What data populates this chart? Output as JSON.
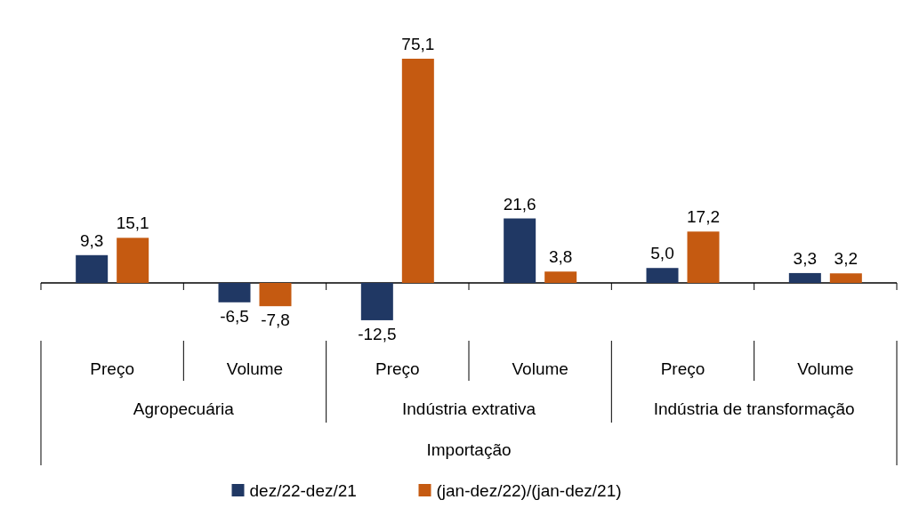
{
  "chart_data": {
    "type": "bar",
    "categories": [
      "Preço",
      "Volume",
      "Preço",
      "Volume",
      "Preço",
      "Volume"
    ],
    "series": [
      {
        "name": "dez/22-dez/21",
        "color": "#203864",
        "values": [
          9.3,
          -6.5,
          -12.5,
          21.6,
          5.0,
          3.3
        ],
        "value_labels": [
          "9,3",
          "-6,5",
          "-12,5",
          "21,6",
          "5,0",
          "3,3"
        ]
      },
      {
        "name": "(jan-dez/22)/(jan-dez/21)",
        "color": "#c55a11",
        "values": [
          15.1,
          -7.8,
          75.1,
          3.8,
          17.2,
          3.2
        ],
        "value_labels": [
          "15,1",
          "-7,8",
          "75,1",
          "3,8",
          "17,2",
          "3,2"
        ]
      }
    ],
    "annotations": [
      "Agropecuária",
      "Indústria extrativa",
      "Indústria de transformação",
      "Importação"
    ],
    "legend": "bottom"
  }
}
